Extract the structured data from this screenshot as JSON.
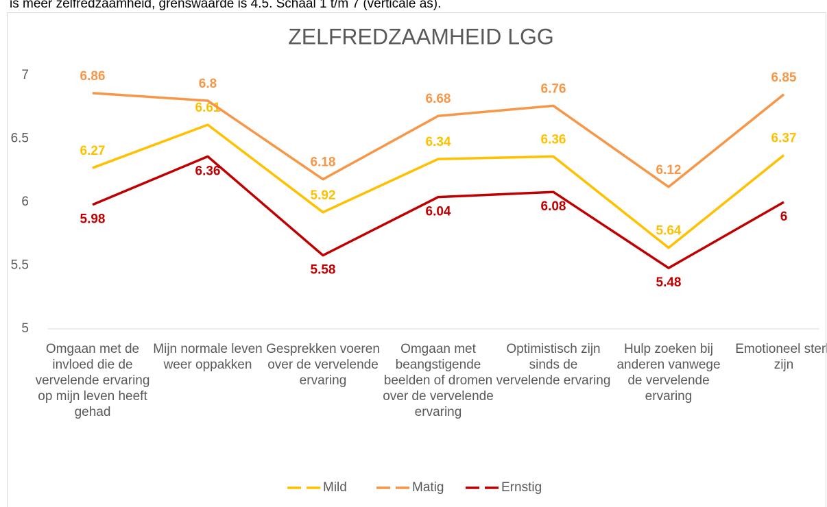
{
  "caption": "is meer zelfredzaamheid, grenswaarde is 4.5. Schaal 1 t/m 7 (verticale as).",
  "chart_data": {
    "type": "line",
    "title": "ZELFREDZAAMHEID LGG",
    "categories": [
      "Omgaan met de invloed die de vervelende ervaring op mijn leven heeft gehad",
      "Mijn normale leven weer oppakken",
      "Gesprekken voeren over de vervelende ervaring",
      "Omgaan met beangstigende beelden of dromen over de vervelende ervaring",
      "Optimistisch zijn sinds de vervelende ervaring",
      "Hulp zoeken bij anderen vanwege de vervelende ervaring",
      "Emotioneel sterk zijn"
    ],
    "series": [
      {
        "name": "Mild",
        "color": "#ffc000",
        "values": [
          6.27,
          6.61,
          5.92,
          6.34,
          6.36,
          5.64,
          6.37
        ]
      },
      {
        "name": "Matig",
        "color": "#f79646",
        "values": [
          6.86,
          6.8,
          6.18,
          6.68,
          6.76,
          6.12,
          6.85
        ]
      },
      {
        "name": "Ernstig",
        "color": "#c00000",
        "values": [
          5.98,
          6.36,
          5.58,
          6.04,
          6.08,
          5.48,
          6
        ]
      }
    ],
    "ylim": [
      5,
      7
    ],
    "yticks": [
      5,
      5.5,
      6,
      6.5,
      7
    ],
    "grid": false,
    "legend": "bottom"
  }
}
